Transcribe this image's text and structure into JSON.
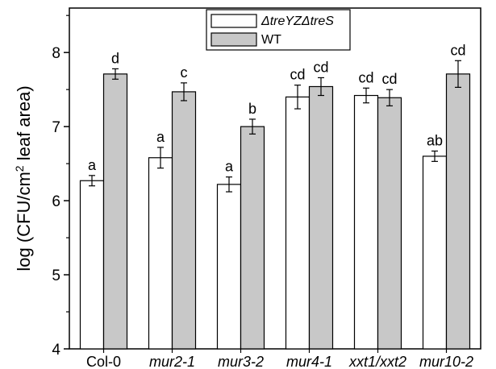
{
  "chart_data": {
    "type": "bar",
    "ylabel_prefix": "log (CFU/cm",
    "ylabel_sup": "2",
    "ylabel_suffix": " leaf area)",
    "ylim": [
      4,
      8.6
    ],
    "yticks": [
      4,
      5,
      6,
      7,
      8
    ],
    "yticks_minor": [
      4.5,
      5.5,
      6.5,
      7.5,
      8.5
    ],
    "categories": [
      {
        "label": "Col-0",
        "italic": false
      },
      {
        "label": "mur2-1",
        "italic": true
      },
      {
        "label": "mur3-2",
        "italic": true
      },
      {
        "label": "mur4-1",
        "italic": true
      },
      {
        "label": "xxt1/xxt2",
        "italic": true
      },
      {
        "label": "mur10-2",
        "italic": true
      }
    ],
    "series": [
      {
        "name": "ΔtreYZΔtreS",
        "color": "#ffffff",
        "values": [
          6.27,
          6.58,
          6.22,
          7.4,
          7.42,
          6.6
        ],
        "errors": [
          0.07,
          0.14,
          0.1,
          0.16,
          0.1,
          0.07
        ],
        "sig": [
          "a",
          "a",
          "a",
          "cd",
          "cd",
          "ab"
        ]
      },
      {
        "name": "WT",
        "color": "#c8c8c8",
        "values": [
          7.71,
          7.47,
          7.0,
          7.54,
          7.39,
          7.71
        ],
        "errors": [
          0.07,
          0.12,
          0.1,
          0.12,
          0.11,
          0.18
        ],
        "sig": [
          "d",
          "c",
          "b",
          "cd",
          "cd",
          "cd"
        ]
      }
    ],
    "legend_position": "top-center",
    "grid": false
  }
}
